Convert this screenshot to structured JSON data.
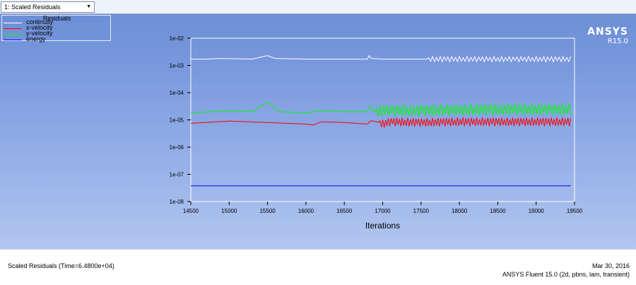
{
  "window_selector": {
    "value": "1: Scaled Residuals"
  },
  "legend": {
    "title": "Residuals",
    "items": [
      {
        "label": "continuity",
        "color": "#ffffff"
      },
      {
        "label": "x-velocity",
        "color": "#ff0000"
      },
      {
        "label": "y-velocity",
        "color": "#00ff00"
      },
      {
        "label": "energy",
        "color": "#0000ff"
      }
    ]
  },
  "brand": {
    "name": "ANSYS",
    "version": "R15.0"
  },
  "footer": {
    "left": "Scaled Residuals  (Time=6.4800e+04)",
    "date": "Mar 30, 2016",
    "solver": "ANSYS Fluent 15.0 (2d, pbns, lam, transient)"
  },
  "chart_data": {
    "type": "line",
    "xlabel": "Iterations",
    "ylabel": "",
    "xlim": [
      14500,
      19500
    ],
    "ylim": [
      1e-08,
      0.01
    ],
    "yscale": "log",
    "grid": false,
    "legend_position": "top-left",
    "x_ticks": [
      14500,
      15000,
      15500,
      16000,
      16500,
      17000,
      17500,
      18000,
      18500,
      19000,
      19500
    ],
    "y_ticks": [
      1e-08,
      1e-07,
      1e-06,
      1e-05,
      0.0001,
      0.001,
      0.01
    ],
    "y_tick_labels": [
      "1e-08",
      "1e-07",
      "1e-06",
      "1e-05",
      "1e-04",
      "1e-03",
      "1e-02"
    ],
    "series": [
      {
        "name": "continuity",
        "color": "#ffffff",
        "x": [
          14500,
          14700,
          14900,
          15300,
          15500,
          15600,
          16000,
          16500,
          16800,
          16820,
          16850,
          17000,
          17500,
          18000,
          18500,
          19000,
          19450
        ],
        "y": [
          0.0017,
          0.0017,
          0.0018,
          0.0017,
          0.0023,
          0.0018,
          0.0017,
          0.0017,
          0.0017,
          0.0024,
          0.0018,
          0.0017,
          0.0017,
          0.0017,
          0.0017,
          0.0017,
          0.0017
        ],
        "osc_start": 17600,
        "osc_amp": 0.1,
        "osc_step": 25
      },
      {
        "name": "x-velocity",
        "color": "#ff0000",
        "x": [
          14500,
          15000,
          15500,
          16000,
          16100,
          16200,
          16500,
          16800,
          16850,
          16950,
          17000,
          17100,
          17500,
          18000,
          18500,
          19000,
          19450
        ],
        "y": [
          7.5e-06,
          9e-06,
          8e-06,
          7e-06,
          6.5e-06,
          8.5e-06,
          8e-06,
          7e-06,
          9.5e-06,
          8e-06,
          7e-06,
          8.5e-06,
          8e-06,
          8.5e-06,
          8.5e-06,
          8.5e-06,
          8.5e-06
        ],
        "osc_start": 16950,
        "osc_amp": 0.16,
        "osc_step": 18
      },
      {
        "name": "y-velocity",
        "color": "#00ff00",
        "x": [
          14500,
          15000,
          15300,
          15500,
          15650,
          16000,
          16200,
          16500,
          16800,
          16840,
          16870,
          17000,
          17500,
          18000,
          18500,
          19000,
          19450
        ],
        "y": [
          1.8e-05,
          2.2e-05,
          2e-05,
          4.5e-05,
          2e-05,
          1.8e-05,
          2.2e-05,
          2e-05,
          2e-05,
          3.6e-05,
          2e-05,
          2.2e-05,
          2.2e-05,
          2.3e-05,
          2.4e-05,
          2.4e-05,
          2.4e-05
        ],
        "osc_start": 16900,
        "osc_amp": 0.22,
        "osc_step": 22
      },
      {
        "name": "energy",
        "color": "#0000ff",
        "x": [
          14500,
          15000,
          16000,
          17000,
          18000,
          19000,
          19450
        ],
        "y": [
          3.8e-08,
          3.8e-08,
          3.8e-08,
          3.8e-08,
          3.8e-08,
          3.8e-08,
          3.8e-08
        ],
        "osc_start": 19450,
        "osc_amp": 0.0,
        "osc_step": 50
      }
    ]
  }
}
